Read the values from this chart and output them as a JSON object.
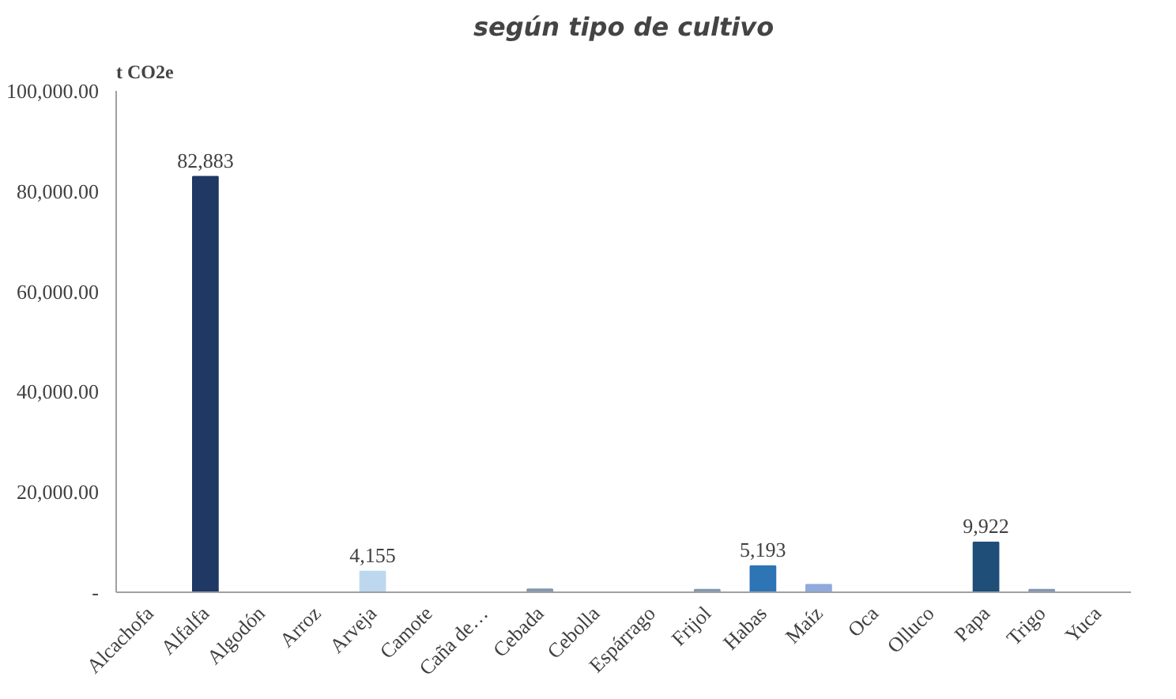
{
  "chart_data": {
    "type": "bar",
    "title": "según tipo de cultivo",
    "ylabel": "t CO2e",
    "categories": [
      "Alcachofa",
      "Alfalfa",
      "Algodón",
      "Arroz",
      "Arveja",
      "Camote",
      "Caña de…",
      "Cebada",
      "Cebolla",
      "Espárrago",
      "Frijol",
      "Habas",
      "Maíz",
      "Oca",
      "Olluco",
      "Papa",
      "Trigo",
      "Yuca"
    ],
    "values": [
      0,
      82883,
      0,
      0,
      4155,
      0,
      0,
      600,
      0,
      0,
      500,
      5193,
      1500,
      0,
      0,
      9922,
      500,
      0
    ],
    "colors": [
      "#a6a6a6",
      "#1f3864",
      "#a6a6a6",
      "#a6a6a6",
      "#bdd7ee",
      "#a6a6a6",
      "#a6a6a6",
      "#8497b0",
      "#a6a6a6",
      "#a6a6a6",
      "#8497b0",
      "#2e75b6",
      "#8faadc",
      "#a6a6a6",
      "#a6a6a6",
      "#1f4e79",
      "#8497b0",
      "#a6a6a6"
    ],
    "value_labels": [
      null,
      "82,883",
      null,
      null,
      "4,155",
      null,
      null,
      null,
      null,
      null,
      null,
      "5,193",
      null,
      null,
      null,
      "9,922",
      null,
      null
    ],
    "ylim": [
      0,
      100000
    ],
    "yticks": [
      {
        "value": 0,
        "label": "-"
      },
      {
        "value": 20000,
        "label": "20,000.00"
      },
      {
        "value": 40000,
        "label": "40,000.00"
      },
      {
        "value": 60000,
        "label": "60,000.00"
      },
      {
        "value": 80000,
        "label": "80,000.00"
      },
      {
        "value": 100000,
        "label": "100,000.00"
      }
    ],
    "grid": false
  }
}
